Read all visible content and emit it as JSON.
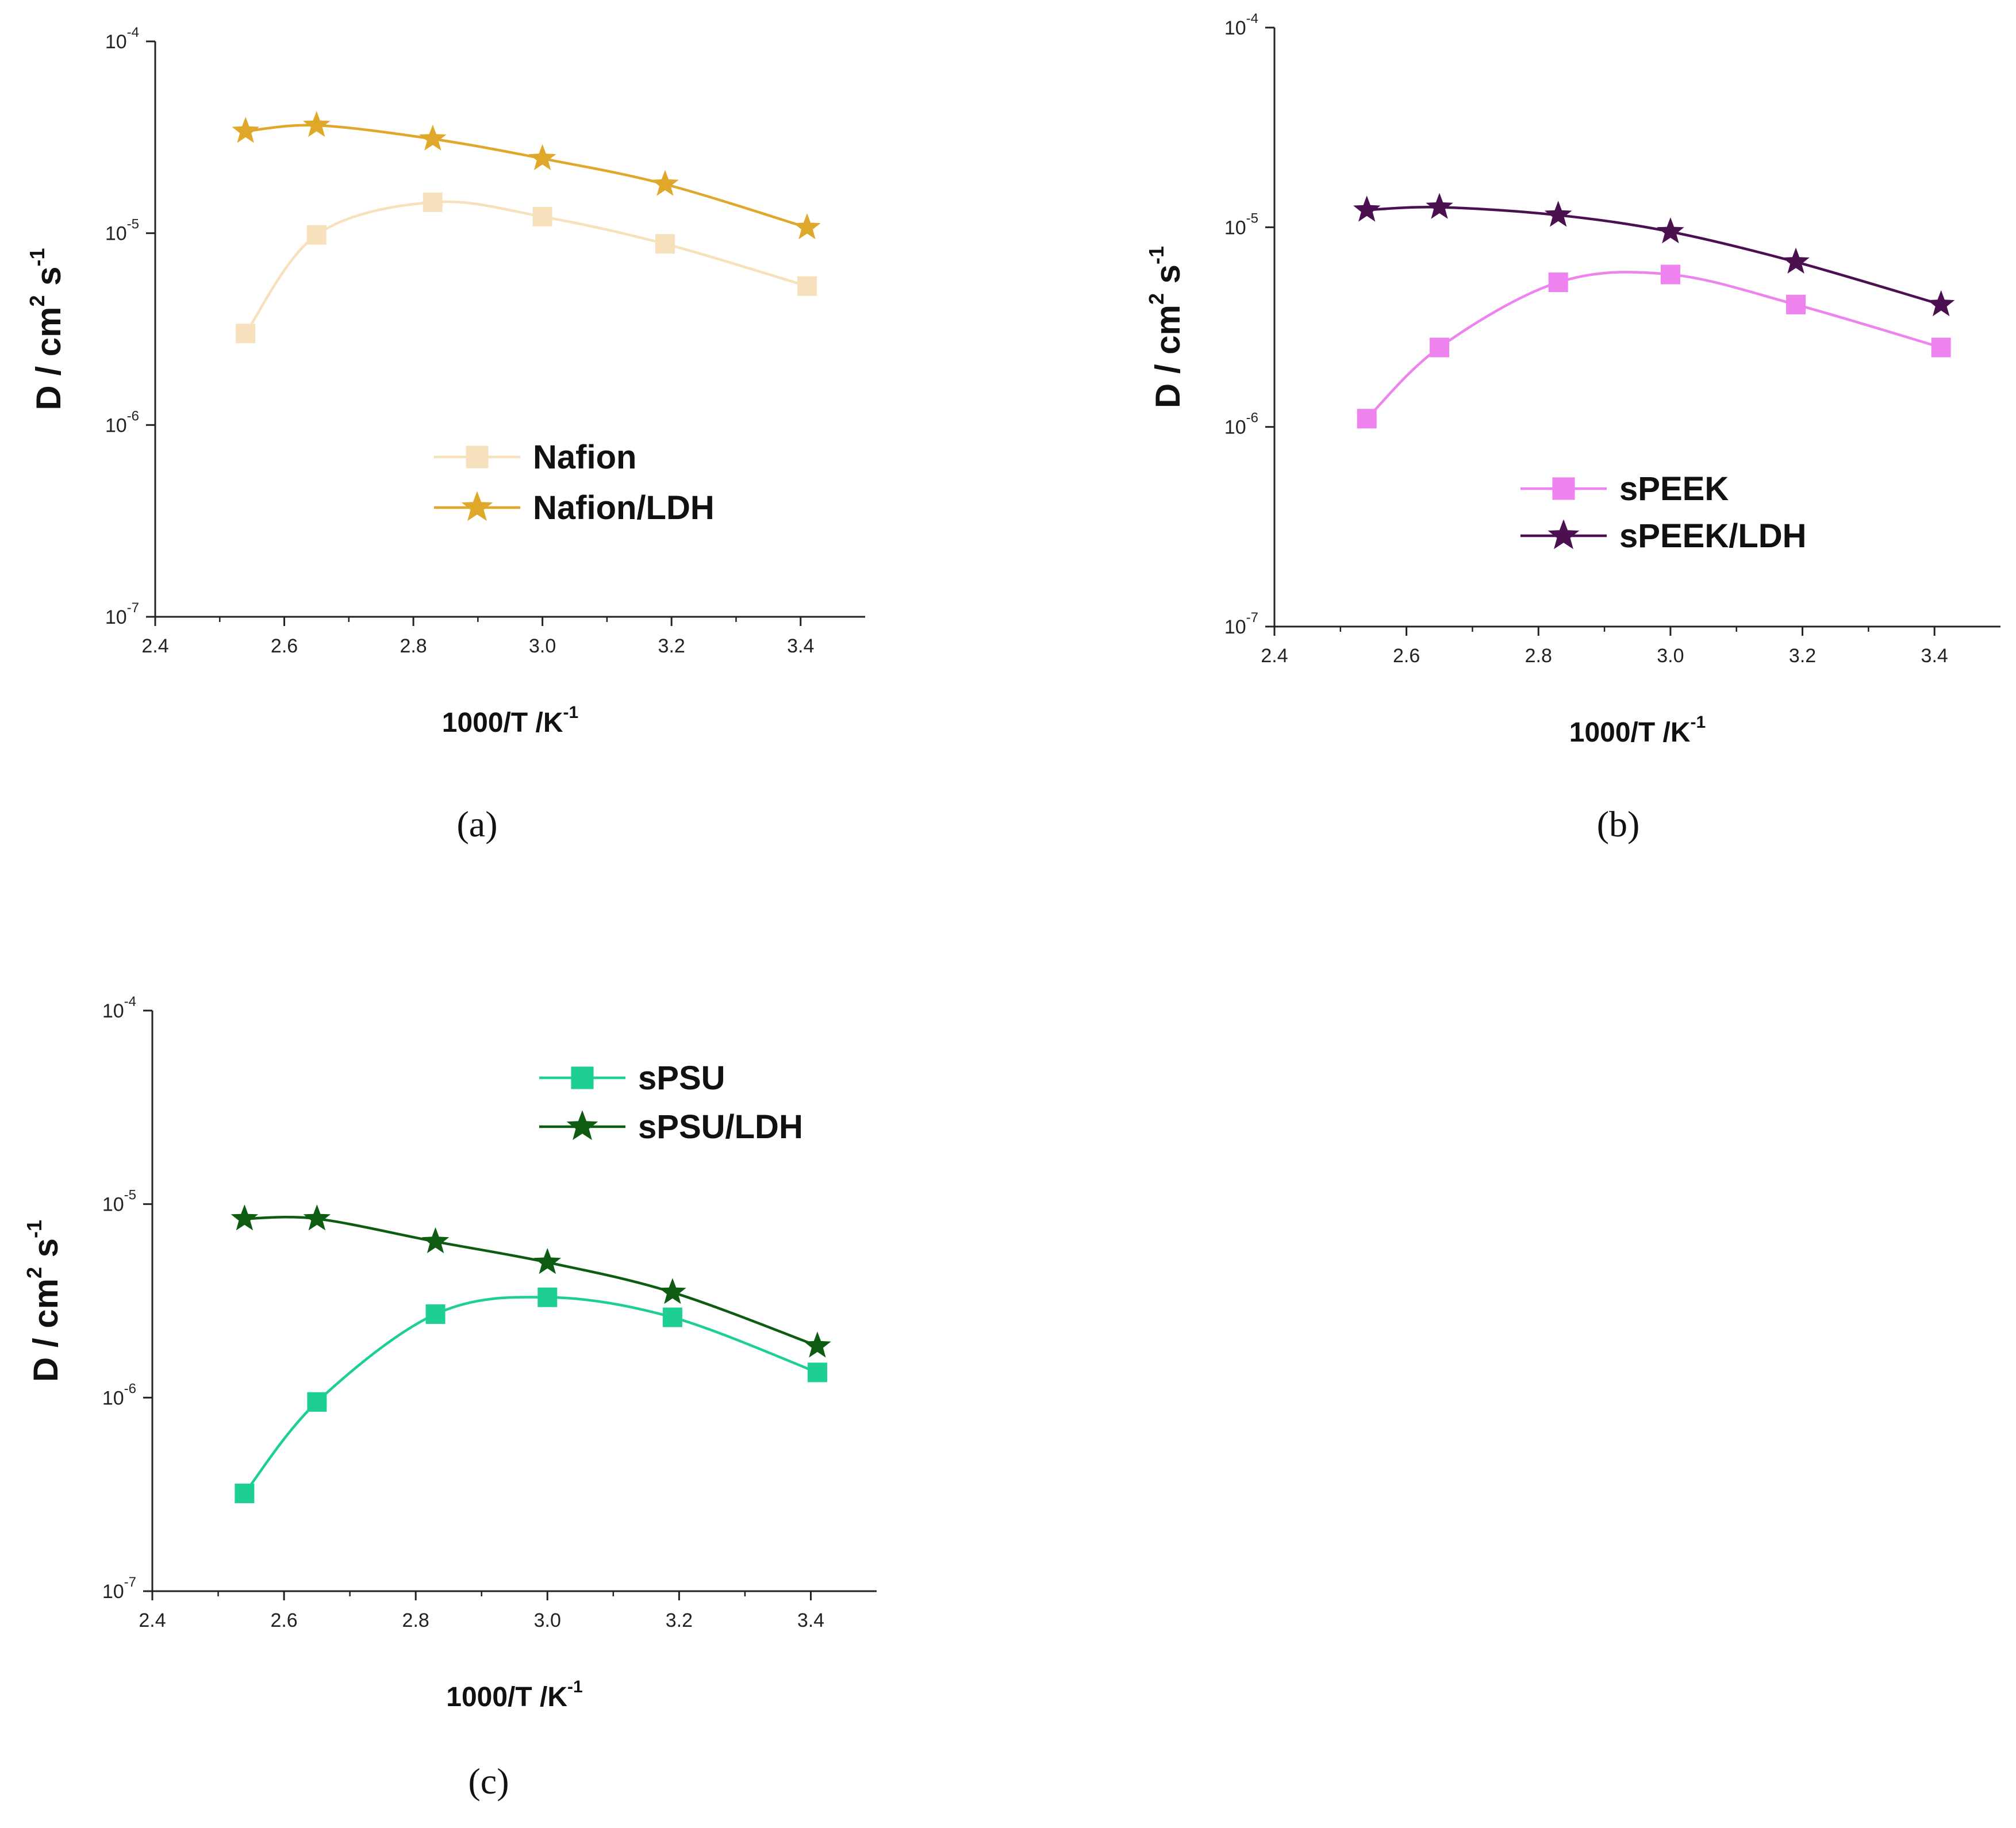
{
  "chart_data": [
    {
      "type": "line",
      "panel_label": "(a)",
      "xlabel": {
        "main": "1000/T /K",
        "sup": "-1"
      },
      "ylabel": {
        "main": "D / cm",
        "sup1": "2",
        "mid": " s",
        "sup2": "-1"
      },
      "xlim": [
        2.4,
        3.5
      ],
      "ylim": [
        1e-07,
        0.0001
      ],
      "yscale": "log",
      "x_ticks": [
        "2.4",
        "2.6",
        "2.8",
        "3.0",
        "3.2",
        "3.4"
      ],
      "y_ticks": [
        {
          "base": "10",
          "exp": "-7"
        },
        {
          "base": "10",
          "exp": "-6"
        },
        {
          "base": "10",
          "exp": "-5"
        },
        {
          "base": "10",
          "exp": "-4"
        }
      ],
      "legend_position": "center",
      "series": [
        {
          "name": "Nafion",
          "marker": "square",
          "color": "#f7e1bd",
          "x": [
            2.54,
            2.65,
            2.83,
            3.0,
            3.19,
            3.41
          ],
          "y": [
            3e-06,
            9.8e-06,
            1.45e-05,
            1.22e-05,
            8.8e-06,
            5.3e-06
          ]
        },
        {
          "name": "Nafion/LDH",
          "marker": "star",
          "color": "#e0a82a",
          "x": [
            2.54,
            2.65,
            2.83,
            3.0,
            3.19,
            3.41
          ],
          "y": [
            3.4e-05,
            3.65e-05,
            3.1e-05,
            2.45e-05,
            1.8e-05,
            1.07e-05
          ]
        }
      ]
    },
    {
      "type": "line",
      "panel_label": "(b)",
      "xlabel": {
        "main": "1000/T /K",
        "sup": "-1"
      },
      "ylabel": {
        "main": "D / cm",
        "sup1": "2",
        "mid": " s",
        "sup2": "-1"
      },
      "xlim": [
        2.4,
        3.5
      ],
      "ylim": [
        1e-07,
        0.0001
      ],
      "yscale": "log",
      "x_ticks": [
        "2.4",
        "2.6",
        "2.8",
        "3.0",
        "3.2",
        "3.4"
      ],
      "y_ticks": [
        {
          "base": "10",
          "exp": "-7"
        },
        {
          "base": "10",
          "exp": "-6"
        },
        {
          "base": "10",
          "exp": "-5"
        },
        {
          "base": "10",
          "exp": "-4"
        }
      ],
      "legend_position": "center",
      "series": [
        {
          "name": "sPEEK",
          "marker": "square",
          "color": "#ee82ee",
          "x": [
            2.54,
            2.65,
            2.83,
            3.0,
            3.19,
            3.41
          ],
          "y": [
            1.1e-06,
            2.5e-06,
            5.3e-06,
            5.8e-06,
            4.1e-06,
            2.5e-06
          ]
        },
        {
          "name": "sPEEK/LDH",
          "marker": "star",
          "color": "#4a1050",
          "x": [
            2.54,
            2.65,
            2.83,
            3.0,
            3.19,
            3.41
          ],
          "y": [
            1.22e-05,
            1.26e-05,
            1.15e-05,
            9.5e-06,
            6.7e-06,
            4.1e-06
          ]
        }
      ]
    },
    {
      "type": "line",
      "panel_label": "(c)",
      "xlabel": {
        "main": "1000/T /K",
        "sup": "-1"
      },
      "ylabel": {
        "main": "D / cm",
        "sup1": "2",
        "mid": " s",
        "sup2": "-1"
      },
      "xlim": [
        2.4,
        3.5
      ],
      "ylim": [
        1e-07,
        0.0001
      ],
      "yscale": "log",
      "x_ticks": [
        "2.4",
        "2.6",
        "2.8",
        "3.0",
        "3.2",
        "3.4"
      ],
      "y_ticks": [
        {
          "base": "10",
          "exp": "-7"
        },
        {
          "base": "10",
          "exp": "-6"
        },
        {
          "base": "10",
          "exp": "-5"
        },
        {
          "base": "10",
          "exp": "-4"
        }
      ],
      "legend_position": "top-right",
      "series": [
        {
          "name": "sPSU",
          "marker": "square",
          "color": "#1ecf92",
          "x": [
            2.54,
            2.65,
            2.83,
            3.0,
            3.19,
            3.41
          ],
          "y": [
            3.2e-07,
            9.5e-07,
            2.7e-06,
            3.3e-06,
            2.6e-06,
            1.35e-06
          ]
        },
        {
          "name": "sPSU/LDH",
          "marker": "star",
          "color": "#0d5c12",
          "x": [
            2.54,
            2.65,
            2.83,
            3.0,
            3.19,
            3.41
          ],
          "y": [
            8.4e-06,
            8.4e-06,
            6.4e-06,
            5e-06,
            3.5e-06,
            1.85e-06
          ]
        }
      ]
    }
  ]
}
